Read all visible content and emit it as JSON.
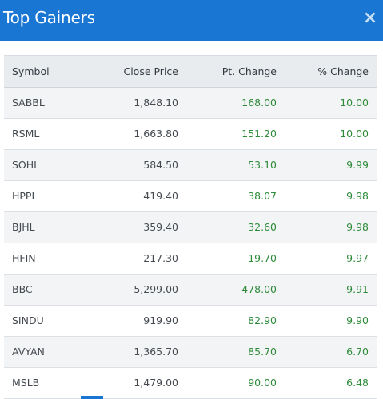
{
  "modal": {
    "title": "Top Gainers",
    "close_label": "×"
  },
  "table": {
    "headers": {
      "symbol": "Symbol",
      "close_price": "Close Price",
      "pt_change": "Pt. Change",
      "pct_change": "% Change"
    },
    "rows": [
      {
        "symbol": "SABBL",
        "close_price": "1,848.10",
        "pt_change": "168.00",
        "pct_change": "10.00"
      },
      {
        "symbol": "RSML",
        "close_price": "1,663.80",
        "pt_change": "151.20",
        "pct_change": "10.00"
      },
      {
        "symbol": "SOHL",
        "close_price": "584.50",
        "pt_change": "53.10",
        "pct_change": "9.99"
      },
      {
        "symbol": "HPPL",
        "close_price": "419.40",
        "pt_change": "38.07",
        "pct_change": "9.98"
      },
      {
        "symbol": "BJHL",
        "close_price": "359.40",
        "pt_change": "32.60",
        "pct_change": "9.98"
      },
      {
        "symbol": "HFIN",
        "close_price": "217.30",
        "pt_change": "19.70",
        "pct_change": "9.97"
      },
      {
        "symbol": "BBC",
        "close_price": "5,299.00",
        "pt_change": "478.00",
        "pct_change": "9.91"
      },
      {
        "symbol": "SINDU",
        "close_price": "919.90",
        "pt_change": "82.90",
        "pct_change": "9.90"
      },
      {
        "symbol": "AVYAN",
        "close_price": "1,365.70",
        "pt_change": "85.70",
        "pct_change": "6.70"
      },
      {
        "symbol": "MSLB",
        "close_price": "1,479.00",
        "pt_change": "90.00",
        "pct_change": "6.48"
      }
    ]
  },
  "colors": {
    "header_bg": "#1976d2",
    "gain_text": "#2e8b3a"
  }
}
